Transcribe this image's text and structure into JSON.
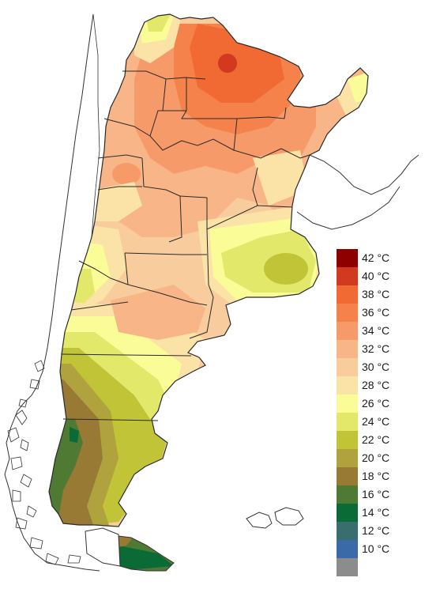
{
  "legend": {
    "items": [
      {
        "label": "42 °C",
        "color": "#8c0000"
      },
      {
        "label": "40 °C",
        "color": "#d13a1e"
      },
      {
        "label": "38 °C",
        "color": "#f26a33"
      },
      {
        "label": "36 °C",
        "color": "#f5824a"
      },
      {
        "label": "34 °C",
        "color": "#f79a6a"
      },
      {
        "label": "32 °C",
        "color": "#f8b587"
      },
      {
        "label": "30 °C",
        "color": "#f9cc9e"
      },
      {
        "label": "28 °C",
        "color": "#fbe3a8"
      },
      {
        "label": "26 °C",
        "color": "#fafc98"
      },
      {
        "label": "24 °C",
        "color": "#e2e86a"
      },
      {
        "label": "22 °C",
        "color": "#c2c438"
      },
      {
        "label": "20 °C",
        "color": "#b0a23c"
      },
      {
        "label": "18 °C",
        "color": "#997a34"
      },
      {
        "label": "16 °C",
        "color": "#4e7a34"
      },
      {
        "label": "14 °C",
        "color": "#0a6b36"
      },
      {
        "label": "12 °C",
        "color": "#3a6e6e"
      },
      {
        "label": "10 °C",
        "color": "#3a6aa8"
      },
      {
        "label": "",
        "color": "#8c8c8c"
      }
    ]
  }
}
